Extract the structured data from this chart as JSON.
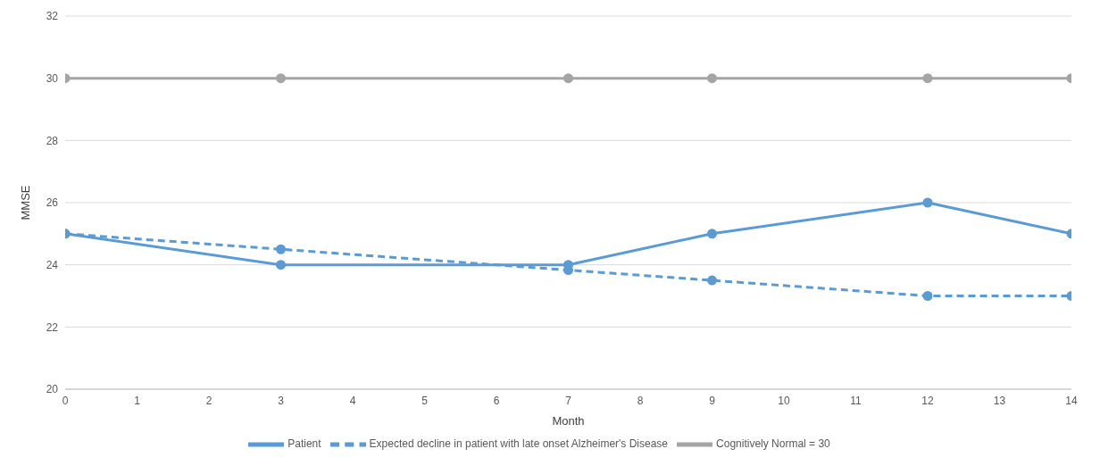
{
  "chart_data": {
    "type": "line",
    "xlabel": "Month",
    "ylabel": "MMSE",
    "x": [
      0,
      3,
      7,
      9,
      12,
      14
    ],
    "series": [
      {
        "name": "Patient",
        "color": "#5b9bd5",
        "values": [
          25,
          24,
          24,
          25,
          26,
          25
        ],
        "line_style": "solid"
      },
      {
        "name": "Expected decline in patient with late onset Alzheimer's Disease",
        "color": "#5b9bd5",
        "values": [
          25,
          24.5,
          23.83,
          23.5,
          23,
          23
        ],
        "line_style": "dashed"
      },
      {
        "name": "Cognitively Normal = 30",
        "color": "#a5a5a5",
        "values": [
          30,
          30,
          30,
          30,
          30,
          30
        ],
        "line_style": "solid"
      }
    ],
    "xlim": [
      0,
      14
    ],
    "xticks": [
      0,
      1,
      2,
      3,
      4,
      5,
      6,
      7,
      8,
      9,
      10,
      11,
      12,
      13,
      14
    ],
    "ylim": [
      20,
      32
    ],
    "yticks": [
      20,
      22,
      24,
      26,
      28,
      30,
      32
    ],
    "grid": "y",
    "legend": "bottom",
    "marker": "circle"
  }
}
